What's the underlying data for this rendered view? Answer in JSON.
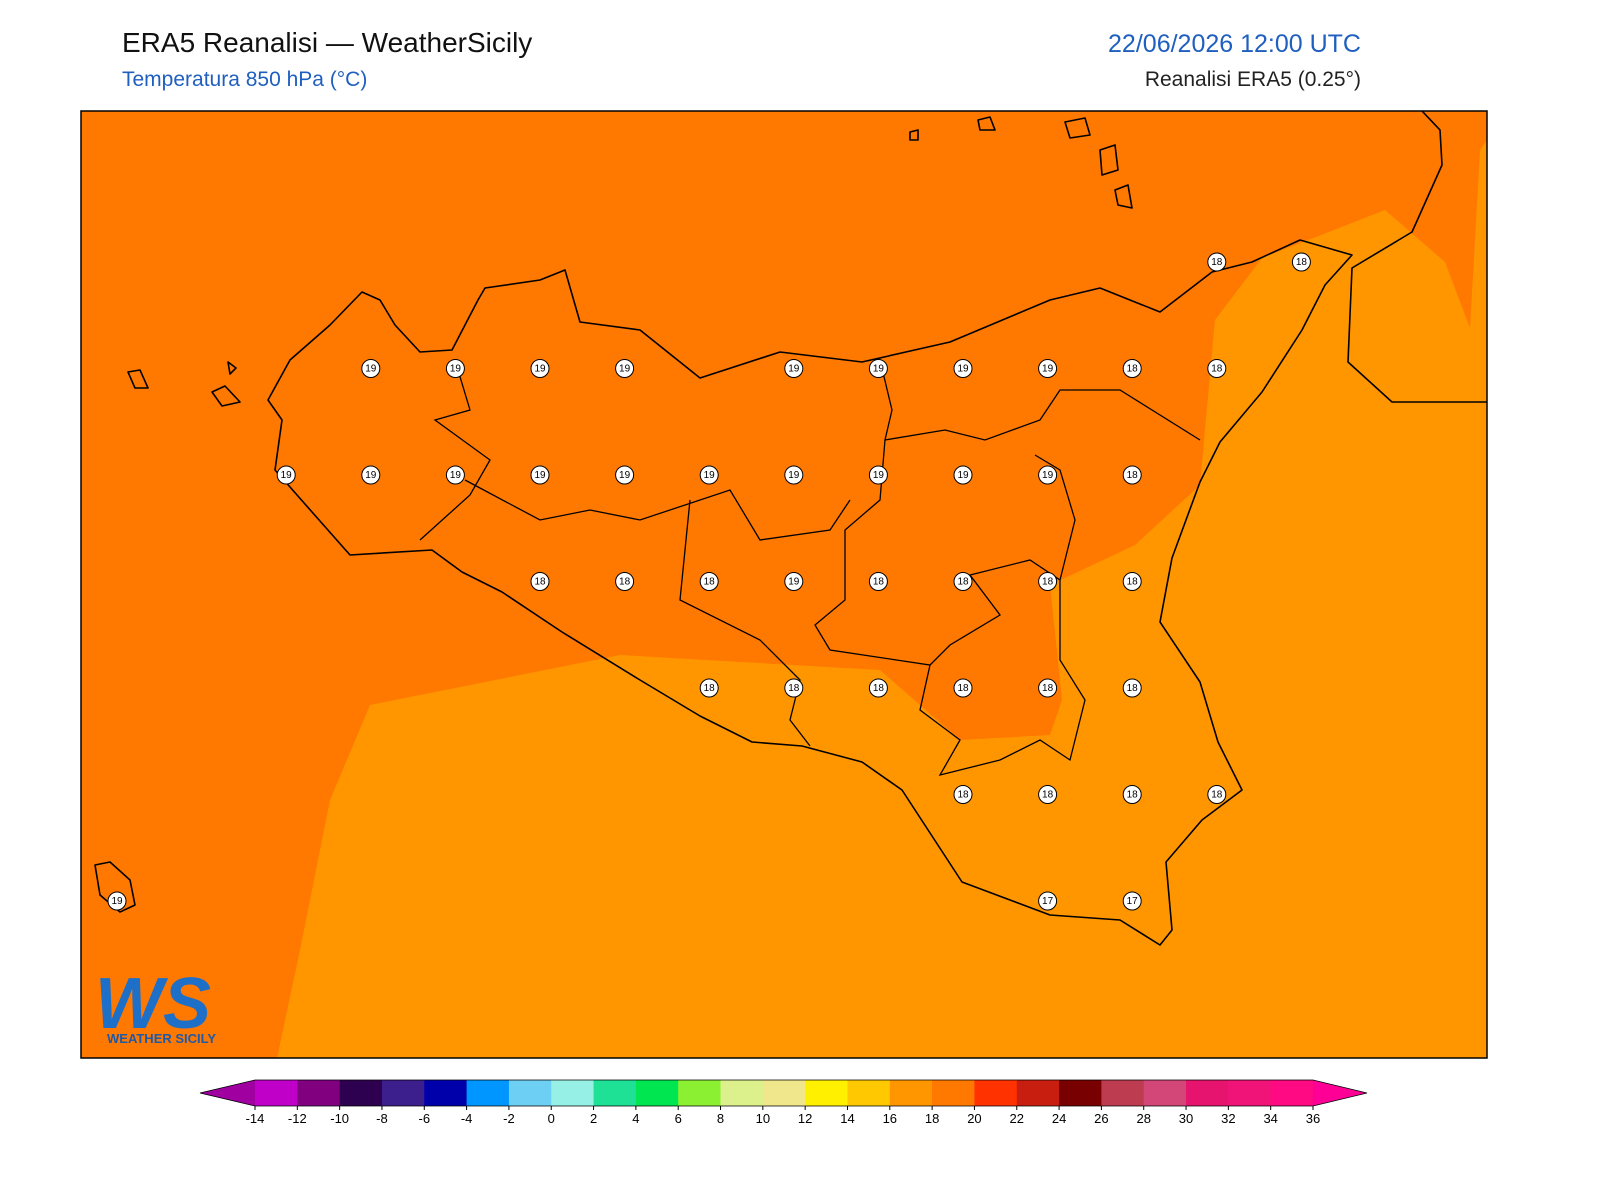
{
  "header": {
    "title": "ERA5 Reanalisi — WeatherSicily",
    "subtitle": "Temperatura 850 hPa (°C)",
    "date": "22/06/2026 12:00 UTC",
    "source": "Reanalisi ERA5 (0.25°)"
  },
  "map": {
    "stations": [
      [
        null,
        null,
        null,
        null,
        null,
        null,
        null,
        null,
        null,
        null,
        null,
        null,
        null,
        18,
        18
      ],
      [
        null,
        null,
        null,
        19,
        19,
        19,
        19,
        null,
        19,
        19,
        19,
        19,
        18,
        18,
        null
      ],
      [
        null,
        null,
        19,
        19,
        19,
        19,
        19,
        19,
        19,
        19,
        19,
        19,
        18,
        null,
        null
      ],
      [
        null,
        null,
        null,
        null,
        null,
        18,
        18,
        18,
        19,
        18,
        18,
        18,
        18,
        null,
        null
      ],
      [
        null,
        null,
        null,
        null,
        null,
        null,
        null,
        18,
        18,
        18,
        18,
        18,
        18,
        null,
        null
      ],
      [
        null,
        null,
        null,
        null,
        null,
        null,
        null,
        null,
        null,
        null,
        18,
        18,
        18,
        18,
        null
      ],
      [
        19,
        null,
        null,
        null,
        null,
        null,
        null,
        null,
        null,
        null,
        null,
        17,
        17,
        null,
        null
      ]
    ]
  },
  "logo": {
    "mark": "WS",
    "name": "WEATHER SICILY"
  },
  "colorbar": {
    "ticks": [
      -14,
      -12,
      -10,
      -8,
      -6,
      -4,
      -2,
      0,
      2,
      4,
      6,
      8,
      10,
      12,
      14,
      16,
      18,
      20,
      22,
      24,
      26,
      28,
      30,
      32,
      34,
      36
    ],
    "colors": [
      "#c000c8",
      "#800080",
      "#2d0050",
      "#3c1e8c",
      "#0000aa",
      "#0096ff",
      "#6ecff5",
      "#96f0e6",
      "#1ee196",
      "#00e650",
      "#8cf032",
      "#dcf08c",
      "#f0e68c",
      "#fff000",
      "#ffc800",
      "#ff9600",
      "#ff7800",
      "#ff3200",
      "#c81e0f",
      "#780000",
      "#be3c50",
      "#d24678",
      "#e6146e",
      "#f01478",
      "#ff0a82"
    ],
    "under": "#a000a0",
    "over": "#ff0096"
  }
}
